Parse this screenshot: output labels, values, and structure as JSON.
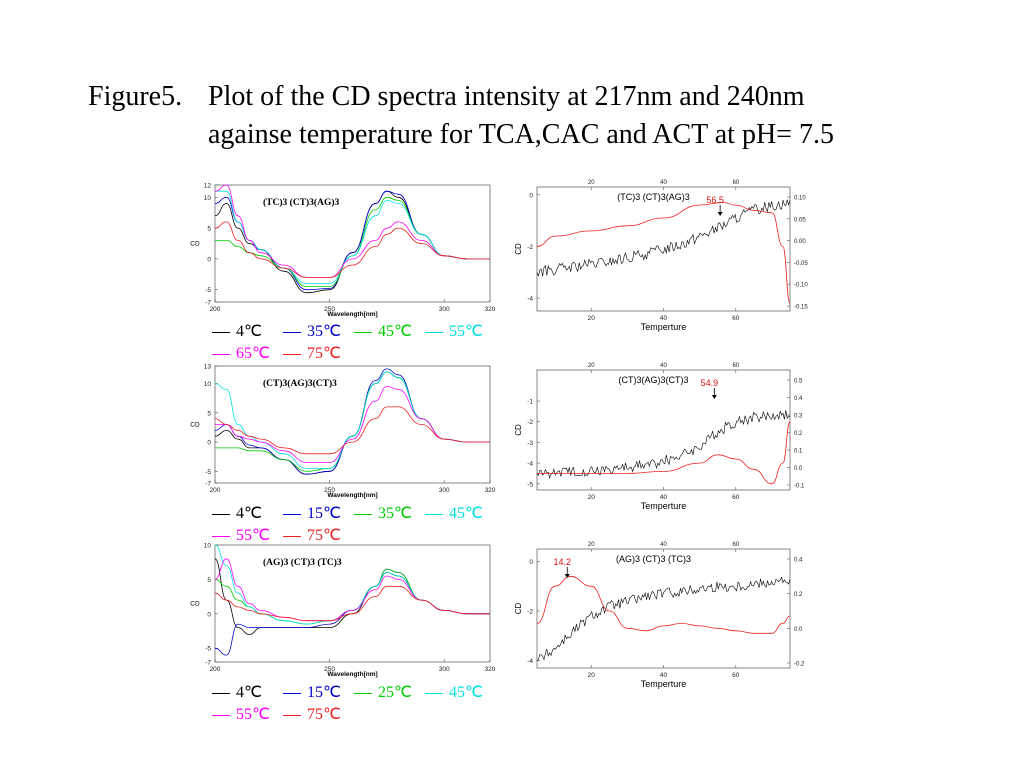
{
  "title": {
    "prefix": "Figure5.",
    "line1": "Plot of the CD spectra intensity at 217nm and 240nm",
    "line2": "againse temperature for TCA,CAC and ACT at pH= 7.5"
  },
  "colors": {
    "4": "#000000",
    "15": "#0000cc",
    "25": "#00cc00",
    "35a": "#0000cc",
    "35b": "#00cc00",
    "45": "#00e0e0",
    "45a": "#00cc00",
    "55": "#ff00ff",
    "55a": "#00e0e0",
    "65": "#ff00ff",
    "75": "#ee2222",
    "trace": "#000000",
    "fit": "#ee2222"
  },
  "chart_data": [
    {
      "type": "line",
      "title": "(TC)3 (CT)3(AG)3",
      "xlabel": "Wavelength[nm]",
      "ylabel": "CD",
      "xlim": [
        200,
        320
      ],
      "ylim": [
        -7,
        12
      ],
      "xticks": [
        "200",
        "250",
        "300",
        "320"
      ],
      "yticks": [
        "12",
        "10",
        "5",
        "0",
        "-5",
        "-7"
      ],
      "series": [
        {
          "name": "4℃",
          "color": "#000000",
          "x": [
            200,
            205,
            210,
            215,
            220,
            230,
            240,
            250,
            260,
            270,
            275,
            280,
            290,
            300,
            310,
            320
          ],
          "y": [
            7,
            9,
            5,
            2.5,
            1.5,
            -2,
            -5.5,
            -5,
            1,
            9,
            11,
            10,
            4,
            0.5,
            0,
            0
          ]
        },
        {
          "name": "35℃",
          "color": "#0000cc",
          "x": [
            200,
            205,
            210,
            215,
            220,
            230,
            240,
            250,
            260,
            270,
            275,
            280,
            290,
            300,
            310,
            320
          ],
          "y": [
            9,
            10,
            6,
            3,
            1.5,
            -1.5,
            -5,
            -4.8,
            1,
            9,
            11,
            10.5,
            4,
            0.5,
            0,
            0
          ]
        },
        {
          "name": "45℃",
          "color": "#00cc00",
          "x": [
            200,
            205,
            210,
            215,
            220,
            230,
            240,
            250,
            260,
            270,
            275,
            280,
            290,
            300,
            310,
            320
          ],
          "y": [
            3,
            3,
            2,
            1,
            0.5,
            -1.5,
            -4.5,
            -4.5,
            0.5,
            8,
            10,
            9.5,
            4,
            0.5,
            0,
            0
          ]
        },
        {
          "name": "55℃",
          "color": "#00e0e0",
          "x": [
            200,
            205,
            210,
            215,
            220,
            230,
            240,
            250,
            260,
            270,
            275,
            280,
            290,
            300,
            310,
            320
          ],
          "y": [
            11,
            11,
            6,
            3,
            1.5,
            -1.5,
            -4,
            -4,
            0.5,
            7,
            9.5,
            9,
            4,
            0.5,
            0,
            0
          ]
        },
        {
          "name": "65℃",
          "color": "#ff00ff",
          "x": [
            200,
            205,
            210,
            215,
            220,
            230,
            240,
            250,
            260,
            270,
            275,
            280,
            290,
            300,
            310,
            320
          ],
          "y": [
            11,
            12,
            7,
            3,
            1,
            -1,
            -3,
            -3,
            0,
            3,
            5,
            6,
            3,
            0.5,
            0,
            0
          ]
        },
        {
          "name": "75℃",
          "color": "#ee2222",
          "x": [
            200,
            205,
            210,
            215,
            220,
            230,
            240,
            250,
            260,
            270,
            275,
            280,
            290,
            300,
            310,
            320
          ],
          "y": [
            5,
            6,
            3,
            1,
            0,
            -1.5,
            -3,
            -3,
            -1,
            2,
            4,
            5,
            2.5,
            0.5,
            0,
            0
          ]
        }
      ]
    },
    {
      "type": "line",
      "title": "(TC)3 (CT)3(AG)3",
      "xlabel": "Temperture",
      "ylabel": "CD",
      "annotation": "56.5",
      "annotation_x": 56.5,
      "xlim": [
        5,
        75
      ],
      "ylim": [
        -4.5,
        0.3
      ],
      "xticks": [
        "20",
        "40",
        "60"
      ],
      "yticks": [
        "0",
        "-2",
        "-4"
      ],
      "y2ticks": [
        "0.10",
        "0.05",
        "0.00",
        "-0.05",
        "-0.10",
        "-0.15"
      ],
      "series": [
        {
          "name": "",
          "color": "#000000",
          "x": [
            5,
            10,
            15,
            20,
            25,
            30,
            35,
            40,
            45,
            50,
            55,
            60,
            65,
            70,
            75
          ],
          "y": [
            -3,
            -2.9,
            -2.8,
            -2.7,
            -2.6,
            -2.45,
            -2.3,
            -2.1,
            -1.9,
            -1.6,
            -1.3,
            -0.9,
            -0.6,
            -0.4,
            -0.3
          ]
        },
        {
          "name": "",
          "color": "#ee2222",
          "x": [
            5,
            10,
            20,
            30,
            40,
            50,
            56.5,
            60,
            65,
            70,
            73,
            75
          ],
          "y": [
            -2,
            -1.6,
            -1.4,
            -1.2,
            -0.9,
            -0.4,
            -0.3,
            -0.4,
            -0.6,
            -0.7,
            -2,
            -4.2
          ]
        }
      ]
    },
    {
      "type": "line",
      "title": "(CT)3(AG)3(CT)3",
      "xlabel": "Wavelength[nm]",
      "ylabel": "CD",
      "xlim": [
        200,
        320
      ],
      "ylim": [
        -7,
        13
      ],
      "xticks": [
        "200",
        "250",
        "300",
        "320"
      ],
      "yticks": [
        "13",
        "10",
        "5",
        "0",
        "-5",
        "-7"
      ],
      "series": [
        {
          "name": "4℃",
          "color": "#000000",
          "x": [
            200,
            205,
            210,
            215,
            220,
            230,
            240,
            250,
            260,
            270,
            275,
            280,
            290,
            300,
            310,
            320
          ],
          "y": [
            1,
            2,
            0.5,
            -1,
            -1,
            -3,
            -5.5,
            -5,
            1,
            10,
            12,
            11,
            4,
            0.5,
            0,
            0
          ]
        },
        {
          "name": "15℃",
          "color": "#0000cc",
          "x": [
            200,
            205,
            210,
            215,
            220,
            230,
            240,
            250,
            260,
            270,
            275,
            280,
            290,
            300,
            310,
            320
          ],
          "y": [
            2,
            3,
            1,
            -0.5,
            -1,
            -3,
            -5.5,
            -5,
            1,
            10.5,
            12.5,
            11.5,
            4,
            0.5,
            0,
            0
          ]
        },
        {
          "name": "35℃",
          "color": "#00cc00",
          "x": [
            200,
            205,
            210,
            215,
            220,
            230,
            240,
            250,
            260,
            270,
            275,
            280,
            290,
            300,
            310,
            320
          ],
          "y": [
            -1,
            -1,
            -1,
            -1.5,
            -1.5,
            -3,
            -5,
            -4.5,
            1,
            10,
            12,
            11,
            4,
            0.5,
            0,
            0
          ]
        },
        {
          "name": "45℃",
          "color": "#00e0e0",
          "x": [
            200,
            205,
            210,
            215,
            220,
            230,
            240,
            250,
            260,
            270,
            275,
            280,
            290,
            300,
            310,
            320
          ],
          "y": [
            10,
            9,
            3,
            1,
            0,
            -2,
            -4.5,
            -4.5,
            1,
            10,
            12,
            11,
            4,
            0.5,
            0,
            0
          ]
        },
        {
          "name": "55℃",
          "color": "#ff00ff",
          "x": [
            200,
            205,
            210,
            215,
            220,
            230,
            240,
            250,
            260,
            270,
            275,
            280,
            290,
            300,
            310,
            320
          ],
          "y": [
            3,
            3,
            1,
            0.5,
            0,
            -1.5,
            -3.5,
            -3.5,
            0.5,
            7,
            9.5,
            9,
            4,
            0.5,
            0,
            0
          ]
        },
        {
          "name": "75℃",
          "color": "#ee2222",
          "x": [
            200,
            205,
            210,
            215,
            220,
            230,
            240,
            250,
            260,
            270,
            275,
            280,
            290,
            300,
            310,
            320
          ],
          "y": [
            4,
            3,
            2,
            1,
            0.5,
            -1,
            -2,
            -2,
            0,
            4,
            6,
            6,
            3,
            0.5,
            0,
            0
          ]
        }
      ]
    },
    {
      "type": "line",
      "title": "(CT)3(AG)3(CT)3",
      "xlabel": "Temperture",
      "ylabel": "CD",
      "annotation": "54.9",
      "annotation_x": 54.9,
      "xlim": [
        5,
        75
      ],
      "ylim": [
        -5.3,
        0.5
      ],
      "xticks": [
        "20",
        "40",
        "60"
      ],
      "yticks": [
        "-1",
        "-2",
        "-3",
        "-4",
        "-5"
      ],
      "y2ticks": [
        "0.5",
        "0.4",
        "0.3",
        "0.2",
        "0.1",
        "0.0",
        "-0.1"
      ],
      "series": [
        {
          "name": "",
          "color": "#000000",
          "x": [
            5,
            10,
            15,
            20,
            25,
            30,
            35,
            40,
            45,
            50,
            55,
            60,
            65,
            70,
            75
          ],
          "y": [
            -4.5,
            -4.45,
            -4.4,
            -4.35,
            -4.3,
            -4.2,
            -4.1,
            -3.9,
            -3.6,
            -3.2,
            -2.5,
            -2,
            -1.8,
            -1.7,
            -1.6
          ]
        },
        {
          "name": "",
          "color": "#ee2222",
          "x": [
            5,
            10,
            20,
            30,
            40,
            50,
            55,
            60,
            65,
            70,
            73,
            75
          ],
          "y": [
            -4.5,
            -4.5,
            -4.5,
            -4.5,
            -4.4,
            -4,
            -3.6,
            -3.8,
            -4.3,
            -5,
            -4,
            -2
          ]
        }
      ]
    },
    {
      "type": "line",
      "title": "(AG)3 (CT)3 (TC)3",
      "xlabel": "Wavelength[nm]",
      "ylabel": "CD",
      "xlim": [
        200,
        320
      ],
      "ylim": [
        -7,
        10
      ],
      "xticks": [
        "200",
        "250",
        "300",
        "320"
      ],
      "yticks": [
        "10",
        "5",
        "0",
        "-5",
        "-7"
      ],
      "series": [
        {
          "name": "4℃",
          "color": "#000000",
          "x": [
            200,
            205,
            210,
            215,
            220,
            230,
            240,
            250,
            260,
            270,
            275,
            280,
            290,
            300,
            310,
            320
          ],
          "y": [
            8,
            2,
            -2,
            -3,
            -2,
            -2,
            -2,
            -2,
            0,
            4,
            6,
            5.5,
            2,
            0.5,
            0,
            0
          ]
        },
        {
          "name": "15℃",
          "color": "#0000cc",
          "x": [
            200,
            205,
            210,
            215,
            220,
            230,
            240,
            250,
            260,
            270,
            275,
            280,
            290,
            300,
            310,
            320
          ],
          "y": [
            -5,
            -6,
            -1.5,
            -2,
            -2,
            -2,
            -2,
            -1.5,
            0.5,
            4,
            6.5,
            6,
            2,
            0.5,
            0,
            0
          ]
        },
        {
          "name": "25℃",
          "color": "#00cc00",
          "x": [
            200,
            205,
            210,
            215,
            220,
            230,
            240,
            250,
            260,
            270,
            275,
            280,
            290,
            300,
            310,
            320
          ],
          "y": [
            5,
            4,
            2,
            1,
            0,
            -1,
            -1.5,
            -1,
            0.5,
            4,
            6.5,
            6,
            2,
            0.5,
            0,
            0
          ]
        },
        {
          "name": "45℃",
          "color": "#00e0e0",
          "x": [
            200,
            205,
            210,
            215,
            220,
            230,
            240,
            250,
            260,
            270,
            275,
            280,
            290,
            300,
            310,
            320
          ],
          "y": [
            10,
            7,
            3,
            1,
            0,
            -1,
            -1.5,
            -1,
            0.5,
            4,
            6,
            5.5,
            2,
            0.5,
            0,
            0
          ]
        },
        {
          "name": "55℃",
          "color": "#ff00ff",
          "x": [
            200,
            205,
            210,
            215,
            220,
            230,
            240,
            250,
            260,
            270,
            275,
            280,
            290,
            300,
            310,
            320
          ],
          "y": [
            5,
            8,
            4,
            1.5,
            0.5,
            -0.5,
            -1,
            -1,
            0.5,
            3.5,
            5.5,
            5,
            2,
            0.5,
            0,
            0
          ]
        },
        {
          "name": "75℃",
          "color": "#ee2222",
          "x": [
            200,
            205,
            210,
            215,
            220,
            230,
            240,
            250,
            260,
            270,
            275,
            280,
            290,
            300,
            310,
            320
          ],
          "y": [
            3,
            2,
            1,
            0.5,
            0,
            -0.5,
            -1,
            -1,
            0,
            2.5,
            4,
            4,
            2,
            0.5,
            0,
            0
          ]
        }
      ]
    },
    {
      "type": "line",
      "title": "(AG)3 (CT)3 (TC)3",
      "xlabel": "Temperture",
      "ylabel": "CD",
      "annotation": "14.2",
      "annotation_x": 14.2,
      "xlim": [
        5,
        75
      ],
      "ylim": [
        -4.3,
        0.5
      ],
      "xticks": [
        "20",
        "40",
        "60"
      ],
      "yticks": [
        "0",
        "-2",
        "-4"
      ],
      "y2ticks": [
        "0.4",
        "0.2",
        "0.0",
        "-0.2"
      ],
      "series": [
        {
          "name": "",
          "color": "#000000",
          "x": [
            5,
            10,
            15,
            20,
            25,
            30,
            35,
            40,
            45,
            50,
            55,
            60,
            65,
            70,
            75
          ],
          "y": [
            -4,
            -3.5,
            -2.8,
            -2.2,
            -1.8,
            -1.6,
            -1.4,
            -1.3,
            -1.2,
            -1.1,
            -1,
            -1,
            -0.9,
            -0.8,
            -0.8
          ]
        },
        {
          "name": "",
          "color": "#ee2222",
          "x": [
            5,
            10,
            14.2,
            20,
            25,
            30,
            35,
            40,
            45,
            50,
            55,
            60,
            65,
            70,
            73,
            75
          ],
          "y": [
            -2.5,
            -1,
            -0.6,
            -1,
            -2,
            -2.7,
            -2.8,
            -2.6,
            -2.5,
            -2.6,
            -2.7,
            -2.8,
            -2.9,
            -2.9,
            -2.5,
            -2.2
          ]
        }
      ]
    }
  ]
}
